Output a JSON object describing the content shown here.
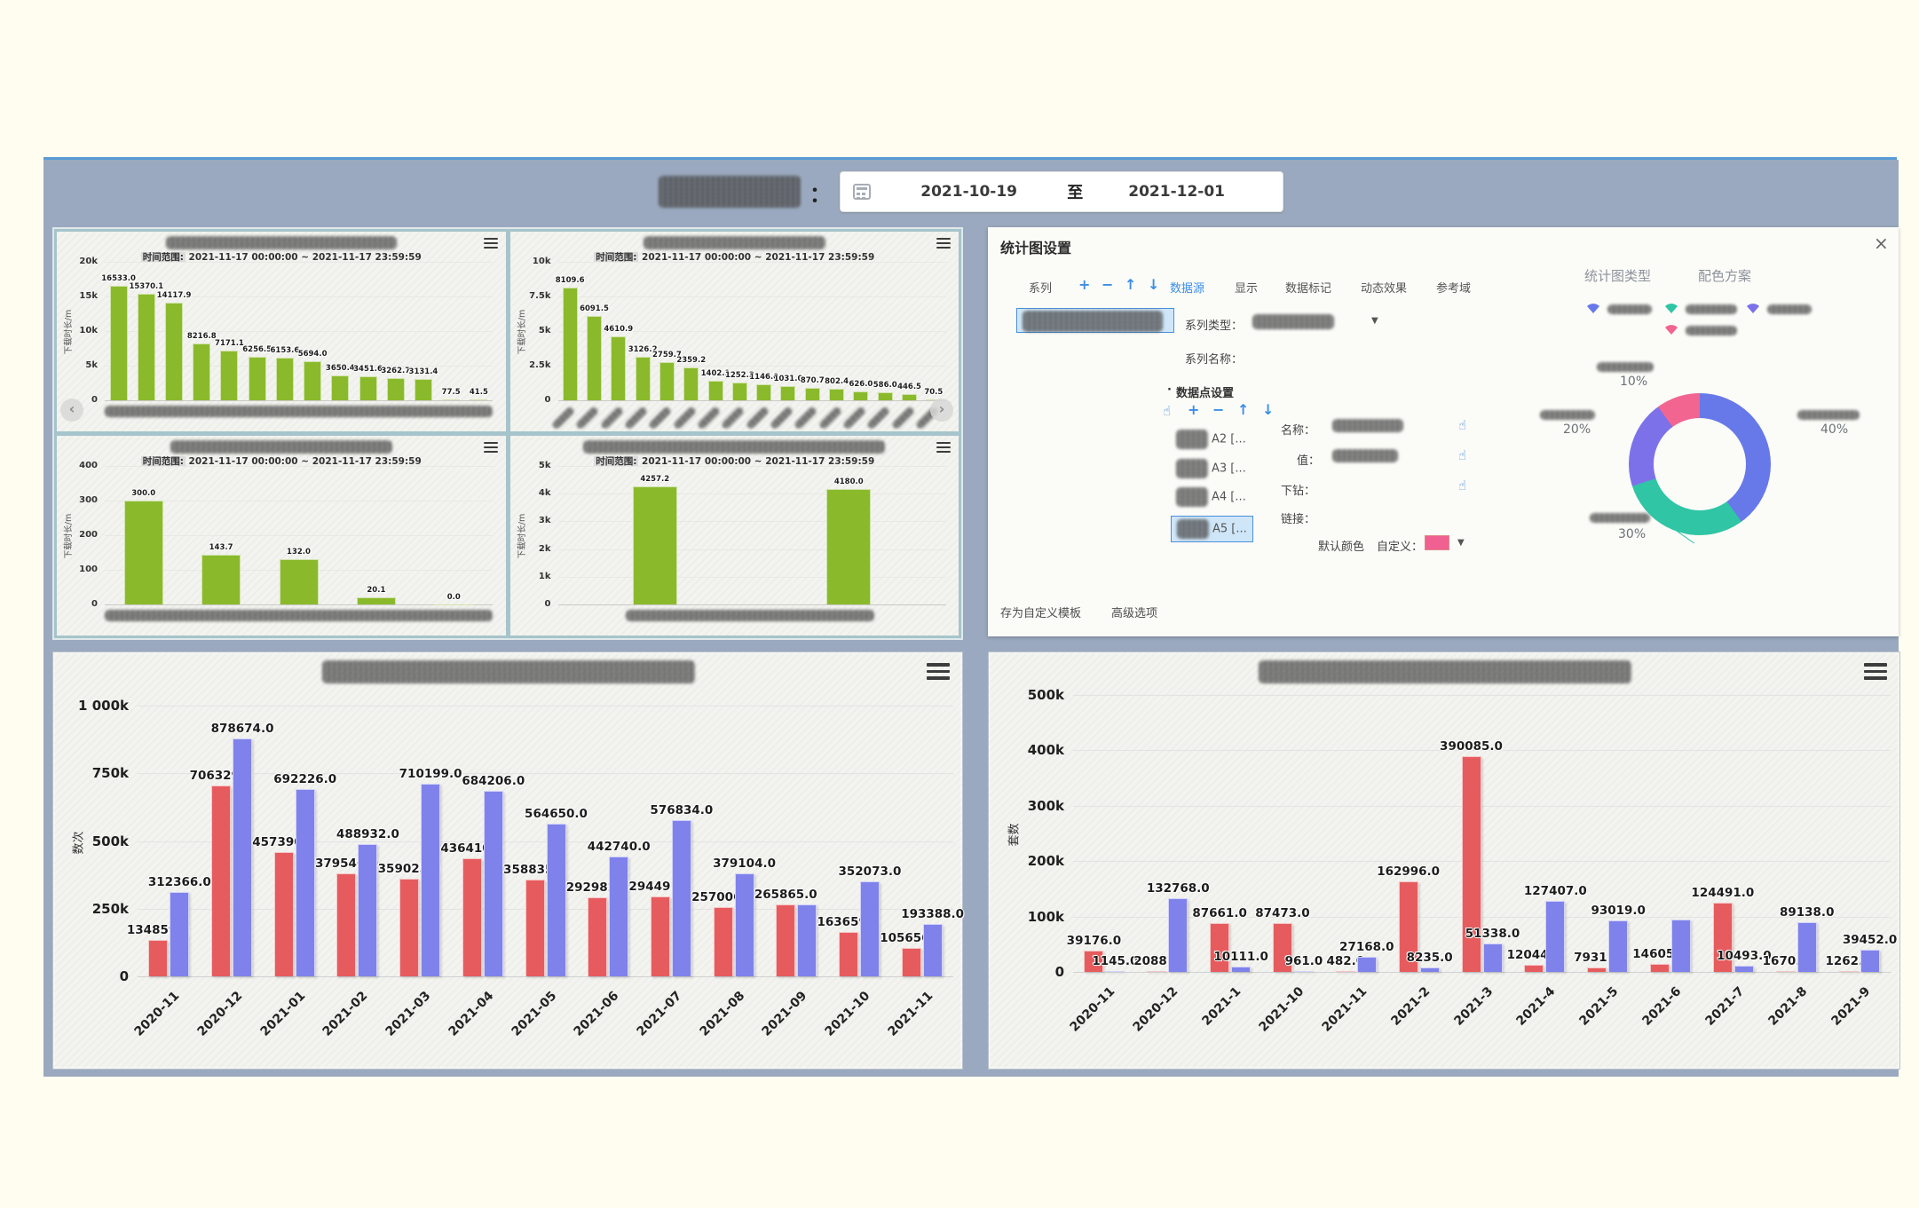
{
  "header": {
    "colon": "：",
    "date_start": "2021-10-19",
    "separator": "至",
    "date_end": "2021-12-01"
  },
  "settings_panel": {
    "title": "统计图设置",
    "close": "×",
    "series_section_label": "系列",
    "series_toolbar": [
      "+",
      "−",
      "↑",
      "↓"
    ],
    "tabs": [
      "数据源",
      "显示",
      "数据标记",
      "动态效果",
      "参考域"
    ],
    "active_tab": "数据源",
    "series_type_label": "系列类型：",
    "series_name_label": "系列名称：",
    "datapoint_section_label": "数据点设置",
    "datapoint_toolbar": [
      "+",
      "−",
      "↑",
      "↓"
    ],
    "datapoint_items": [
      "A2 [...",
      "A3 [...",
      "A4 [...",
      "A5 [..."
    ],
    "selected_item_index": 3,
    "form": {
      "name_label": "名称：",
      "value_label": "值：",
      "drill_label": "下钻：",
      "link_label": "链接：",
      "default_color_label": "默认颜色",
      "custom_label": "自定义：",
      "swatch_color": "#f06090",
      "dropdown_arrow": "▼"
    },
    "footer_links": [
      "存为自定义模板",
      "高级选项"
    ],
    "chart_type_header": "统计图类型",
    "color_scheme_header": "配色方案"
  },
  "chart_data": [
    {
      "id": "mini-1",
      "type": "bar",
      "subtitle_label": "时间范围:",
      "subtitle": "2021-11-17 00:00:00 ~ 2021-11-17 23:59:59",
      "y_label": "下载时长/m",
      "y_ticks": [
        "20k",
        "15k",
        "10k",
        "5k",
        "0"
      ],
      "y_max": 20000,
      "bar_color": "#8aba2c",
      "x_labels_redacted": true,
      "values": [
        16533.0,
        15370.1,
        14117.9,
        8216.8,
        7171.1,
        6256.5,
        6153.6,
        5694.0,
        3650.4,
        3451.6,
        3262.7,
        3131.4,
        77.5,
        41.5
      ]
    },
    {
      "id": "mini-2",
      "type": "bar",
      "subtitle_label": "时间范围:",
      "subtitle": "2021-11-17 00:00:00 ~ 2021-11-17 23:59:59",
      "y_label": "下载时长/m",
      "y_ticks": [
        "10k",
        "7.5k",
        "5k",
        "2.5k",
        "0"
      ],
      "y_max": 10000,
      "bar_color": "#8aba2c",
      "x_labels_redacted": true,
      "values": [
        8109.6,
        6091.5,
        4610.9,
        3126.2,
        2759.7,
        2359.2,
        1402.1,
        1252.2,
        1146.0,
        1031.0,
        870.7,
        802.4,
        626.0,
        586.0,
        446.5,
        70.5
      ]
    },
    {
      "id": "mini-3",
      "type": "bar",
      "subtitle_label": "时间范围:",
      "subtitle": "2021-11-17 00:00:00 ~ 2021-11-17 23:59:59",
      "y_label": "下载时长/m",
      "y_ticks": [
        "400",
        "300",
        "200",
        "100",
        "0"
      ],
      "y_max": 400,
      "bar_color": "#8aba2c",
      "x_labels_redacted": true,
      "values": [
        300.0,
        143.7,
        132.0,
        20.1,
        0.0
      ]
    },
    {
      "id": "mini-4",
      "type": "bar",
      "subtitle_label": "时间范围:",
      "subtitle": "2021-11-17 00:00:00 ~ 2021-11-17 23:59:59",
      "y_label": "下载时长/m",
      "y_ticks": [
        "5k",
        "4k",
        "3k",
        "2k",
        "1k",
        "0"
      ],
      "y_max": 5000,
      "bar_color": "#8aba2c",
      "x_labels_redacted": true,
      "values": [
        4257.2,
        4180.0
      ]
    },
    {
      "id": "donut",
      "type": "pie",
      "slices": [
        {
          "pct": 40,
          "label": "40%",
          "color": "#6779e8"
        },
        {
          "pct": 30,
          "label": "30%",
          "color": "#2fc5a5"
        },
        {
          "pct": 20,
          "label": "20%",
          "color": "#7d71ea"
        },
        {
          "pct": 10,
          "label": "10%",
          "color": "#f26590"
        }
      ]
    },
    {
      "id": "big-left",
      "type": "bar",
      "y_label": "数次",
      "y_ticks": [
        "1 000k",
        "750k",
        "500k",
        "250k",
        "0"
      ],
      "y_max": 1000000,
      "categories": [
        "2020-11",
        "2020-12",
        "2021-01",
        "2021-02",
        "2021-03",
        "2021-04",
        "2021-05",
        "2021-06",
        "2021-07",
        "2021-08",
        "2021-09",
        "2021-10",
        "2021-11"
      ],
      "series": [
        {
          "name": "series-red",
          "color": "#e65c5e",
          "values": [
            134859,
            706329,
            457390,
            379546,
            359025,
            436410,
            358835,
            292982,
            294491,
            257006,
            265865,
            163659,
            105656
          ],
          "labels": [
            "134859.0",
            "706329.0",
            "457390.0",
            "379546.0",
            "359025.0",
            "436410.0",
            "358835.0",
            "292982.0",
            "294491.0",
            "257006.0",
            "265865.0",
            "163659.0",
            "105656.0"
          ]
        },
        {
          "name": "series-blue",
          "color": "#7f82eb",
          "values": [
            312366,
            878674,
            692226,
            488932,
            710199,
            684206,
            564650,
            442740,
            576834,
            379104,
            265865,
            352073,
            193388
          ],
          "labels": [
            "312366.0",
            "878674.0",
            "692226.0",
            "488932.0",
            "710199.0",
            "684206.0",
            "564650.0",
            "442740.0",
            "576834.0",
            "379104.0",
            "",
            "352073.0",
            "193388.0"
          ]
        }
      ]
    },
    {
      "id": "big-right",
      "type": "bar",
      "y_label": "套数",
      "y_ticks": [
        "500k",
        "400k",
        "300k",
        "200k",
        "100k",
        "0"
      ],
      "y_max": 500000,
      "categories": [
        "2020-11",
        "2020-12",
        "2021-1",
        "2021-10",
        "2021-11",
        "2021-2",
        "2021-3",
        "2021-4",
        "2021-5",
        "2021-6",
        "2021-7",
        "2021-8",
        "2021-9"
      ],
      "series": [
        {
          "name": "series-red",
          "color": "#e65c5e",
          "values": [
            39176,
            2088,
            87661,
            87473,
            482,
            162996,
            390085,
            12044,
            7931,
            14605,
            124491,
            1670,
            1262
          ],
          "labels": [
            "39176.0",
            "2088.0",
            "87661.0",
            "87473.0",
            "482.0",
            "162996.0",
            "390085.0",
            "12044.0",
            "7931.0",
            "14605.0",
            "124491.0",
            "1670.0",
            "1262.0"
          ]
        },
        {
          "name": "series-blue",
          "color": "#7f82eb",
          "values": [
            1145,
            132768,
            10111,
            961,
            27168,
            8235,
            51338,
            127407,
            93019,
            95000,
            10493,
            89138,
            39452
          ],
          "labels": [
            "1145.0",
            "132768.0",
            "10111.0",
            "961.0",
            "27168.0",
            "8235.0",
            "51338.0",
            "127407.0",
            "93019.0",
            "",
            "10493.0",
            "89138.0",
            "39452.0"
          ]
        }
      ]
    }
  ]
}
